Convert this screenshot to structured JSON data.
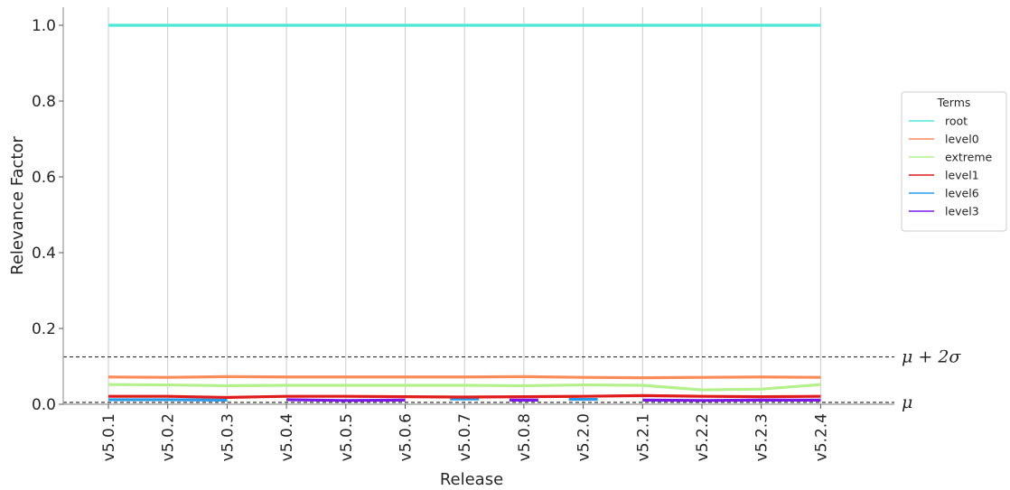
{
  "chart_data": {
    "type": "line",
    "xlabel": "Release",
    "ylabel": "Relevance Factor",
    "categories": [
      "v5.0.1",
      "v5.0.2",
      "v5.0.3",
      "v5.0.4",
      "v5.0.5",
      "v5.0.6",
      "v5.0.7",
      "v5.0.8",
      "v5.2.0",
      "v5.2.1",
      "v5.2.2",
      "v5.2.3",
      "v5.2.4"
    ],
    "ylim": [
      0,
      1.05
    ],
    "yticks": [
      "0.0",
      "0.2",
      "0.4",
      "0.6",
      "0.8",
      "1.0"
    ],
    "grid": "vertical",
    "legend": {
      "title": "Terms",
      "placement": "right"
    },
    "series": [
      {
        "name": "root",
        "color": "#4de8d8",
        "values": [
          1.0,
          1.0,
          1.0,
          1.0,
          1.0,
          1.0,
          1.0,
          1.0,
          1.0,
          1.0,
          1.0,
          1.0,
          1.0
        ]
      },
      {
        "name": "level0",
        "color": "#fa8c5a",
        "values": [
          0.072,
          0.071,
          0.073,
          0.072,
          0.072,
          0.072,
          0.072,
          0.073,
          0.071,
          0.07,
          0.071,
          0.072,
          0.071
        ]
      },
      {
        "name": "extreme",
        "color": "#b4f08c",
        "values": [
          0.052,
          0.051,
          0.049,
          0.05,
          0.05,
          0.05,
          0.05,
          0.049,
          0.051,
          0.05,
          0.038,
          0.04,
          0.052
        ]
      },
      {
        "name": "level1",
        "color": "#e01b1b",
        "values": [
          0.021,
          0.021,
          0.018,
          0.021,
          0.021,
          0.02,
          0.019,
          0.02,
          0.021,
          0.023,
          0.021,
          0.02,
          0.021
        ]
      },
      {
        "name": "level6",
        "color": "#2a9ae8",
        "values": [
          0.012,
          0.012,
          0.011,
          null,
          null,
          null,
          0.014,
          null,
          0.013,
          null,
          null,
          null,
          null
        ]
      },
      {
        "name": "level3",
        "color": "#7a19e8",
        "values": [
          null,
          null,
          null,
          0.012,
          0.01,
          0.011,
          null,
          0.011,
          null,
          0.011,
          0.01,
          0.011,
          0.011
        ]
      }
    ],
    "reference_lines": [
      {
        "label": "μ + 2σ",
        "value": 0.125
      },
      {
        "label": "μ",
        "value": 0.005
      }
    ]
  }
}
